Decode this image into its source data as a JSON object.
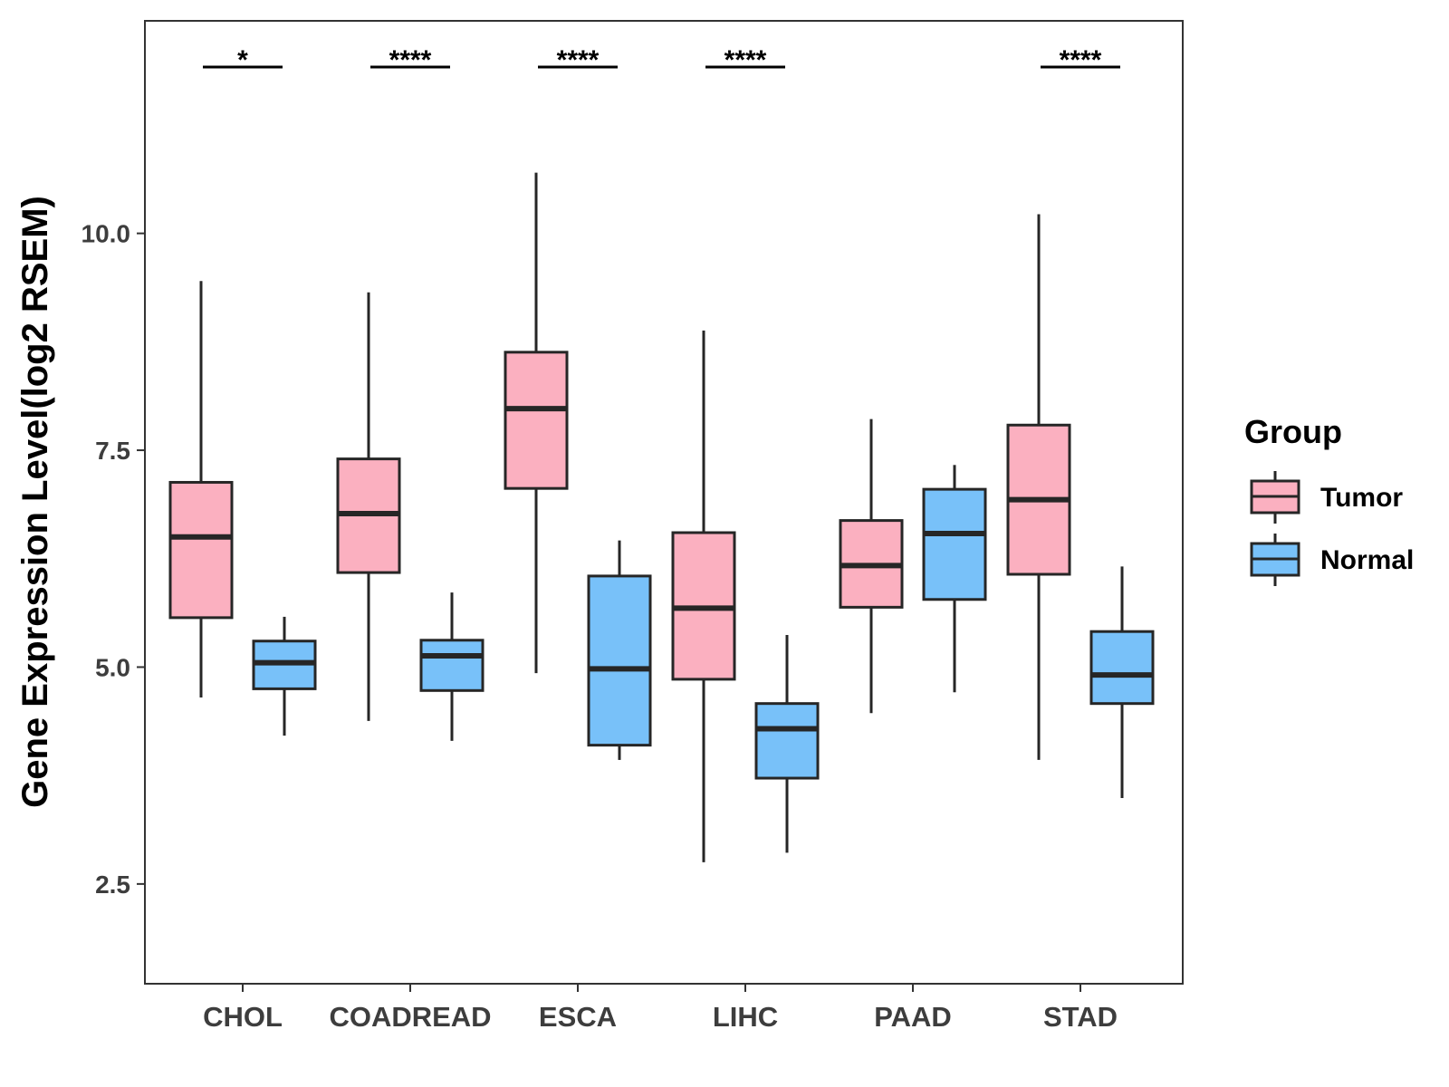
{
  "chart_data": {
    "type": "boxplot",
    "title": "",
    "xlabel": "",
    "ylabel": "Gene Expression Level(log2 RSEM)",
    "ylim": [
      1.35,
      12.45
    ],
    "yticks": [
      2.5,
      5.0,
      7.5,
      10.0
    ],
    "ytick_labels": [
      "2.5",
      "5.0",
      "7.5",
      "10.0"
    ],
    "categories": [
      "CHOL",
      "COADREAD",
      "ESCA",
      "LIHC",
      "PAAD",
      "STAD"
    ],
    "legend": {
      "title": "Group",
      "position": "right",
      "entries": [
        {
          "name": "Tumor",
          "color": "#fbb0c0"
        },
        {
          "name": "Normal",
          "color": "#78c1f9"
        }
      ]
    },
    "series": [
      {
        "name": "Tumor",
        "color": "#fbb0c0",
        "boxes": [
          {
            "whisker_low": 4.65,
            "q1": 5.57,
            "median": 6.5,
            "q3": 7.13,
            "whisker_high": 9.45
          },
          {
            "whisker_low": 4.38,
            "q1": 6.09,
            "median": 6.77,
            "q3": 7.4,
            "whisker_high": 9.32
          },
          {
            "whisker_low": 4.93,
            "q1": 7.06,
            "median": 7.98,
            "q3": 8.63,
            "whisker_high": 10.7
          },
          {
            "whisker_low": 2.75,
            "q1": 4.86,
            "median": 5.68,
            "q3": 6.55,
            "whisker_high": 8.88
          },
          {
            "whisker_low": 4.47,
            "q1": 5.69,
            "median": 6.17,
            "q3": 6.69,
            "whisker_high": 7.86
          },
          {
            "whisker_low": 3.93,
            "q1": 6.07,
            "median": 6.93,
            "q3": 7.79,
            "whisker_high": 10.22
          }
        ]
      },
      {
        "name": "Normal",
        "color": "#78c1f9",
        "boxes": [
          {
            "whisker_low": 4.21,
            "q1": 4.75,
            "median": 5.05,
            "q3": 5.3,
            "whisker_high": 5.58
          },
          {
            "whisker_low": 4.15,
            "q1": 4.73,
            "median": 5.13,
            "q3": 5.31,
            "whisker_high": 5.86
          },
          {
            "whisker_low": 3.93,
            "q1": 4.1,
            "median": 4.98,
            "q3": 6.05,
            "whisker_high": 6.46
          },
          {
            "whisker_low": 2.86,
            "q1": 3.72,
            "median": 4.29,
            "q3": 4.58,
            "whisker_high": 5.37
          },
          {
            "whisker_low": 4.71,
            "q1": 5.78,
            "median": 6.54,
            "q3": 7.05,
            "whisker_high": 7.33
          },
          {
            "whisker_low": 3.49,
            "q1": 4.58,
            "median": 4.91,
            "q3": 5.41,
            "whisker_high": 6.16
          }
        ]
      }
    ],
    "significance": [
      {
        "category": "CHOL",
        "label": "*"
      },
      {
        "category": "COADREAD",
        "label": "****"
      },
      {
        "category": "ESCA",
        "label": "****"
      },
      {
        "category": "LIHC",
        "label": "****"
      },
      {
        "category": "STAD",
        "label": "****"
      }
    ]
  },
  "colors": {
    "tumor_fill": "#fbb0c0",
    "normal_fill": "#78c1f9",
    "box_stroke": "#262626",
    "axis": "#333333"
  }
}
